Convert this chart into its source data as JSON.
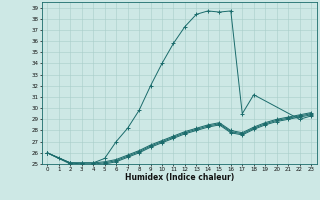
{
  "xlabel": "Humidex (Indice chaleur)",
  "ylabel": "",
  "bg_color": "#cde8e5",
  "grid_color": "#a8ceca",
  "line_color": "#1a6b6b",
  "xlim": [
    -0.5,
    23.5
  ],
  "ylim": [
    25,
    39.5
  ],
  "xticks": [
    0,
    1,
    2,
    3,
    4,
    5,
    6,
    7,
    8,
    9,
    10,
    11,
    12,
    13,
    14,
    15,
    16,
    17,
    18,
    19,
    20,
    21,
    22,
    23
  ],
  "yticks": [
    25,
    26,
    27,
    28,
    29,
    30,
    31,
    32,
    33,
    34,
    35,
    36,
    37,
    38,
    39
  ],
  "lines": [
    {
      "x": [
        0,
        1,
        2,
        3,
        4,
        5,
        6,
        7,
        8,
        9,
        10,
        11,
        12,
        13,
        14,
        15,
        16,
        17,
        18,
        22,
        23
      ],
      "y": [
        26.0,
        25.5,
        25.1,
        25.1,
        25.1,
        25.5,
        27.0,
        28.2,
        29.8,
        32.0,
        34.0,
        35.8,
        37.3,
        38.4,
        38.7,
        38.6,
        38.7,
        29.5,
        31.2,
        29.0,
        29.3
      ]
    },
    {
      "x": [
        0,
        2,
        3,
        4,
        5,
        6,
        7,
        8,
        9,
        10,
        11,
        12,
        13,
        14,
        15,
        16,
        17,
        18,
        19,
        20,
        21,
        22,
        23
      ],
      "y": [
        26.0,
        25.1,
        25.1,
        25.1,
        25.2,
        25.4,
        25.8,
        26.2,
        26.7,
        27.1,
        27.5,
        27.9,
        28.2,
        28.5,
        28.7,
        28.0,
        27.8,
        28.3,
        28.7,
        29.0,
        29.2,
        29.4,
        29.6
      ]
    },
    {
      "x": [
        0,
        2,
        3,
        4,
        5,
        6,
        7,
        8,
        9,
        10,
        11,
        12,
        13,
        14,
        15,
        16,
        17,
        18,
        19,
        20,
        21,
        22,
        23
      ],
      "y": [
        26.0,
        25.1,
        25.0,
        25.0,
        25.1,
        25.3,
        25.7,
        26.1,
        26.6,
        27.0,
        27.4,
        27.8,
        28.1,
        28.4,
        28.6,
        27.9,
        27.7,
        28.2,
        28.6,
        28.9,
        29.1,
        29.3,
        29.5
      ]
    },
    {
      "x": [
        0,
        2,
        3,
        4,
        5,
        6,
        7,
        8,
        9,
        10,
        11,
        12,
        13,
        14,
        15,
        16,
        17,
        18,
        19,
        20,
        21,
        22,
        23
      ],
      "y": [
        26.0,
        25.0,
        24.9,
        24.9,
        25.0,
        25.2,
        25.6,
        26.0,
        26.5,
        26.9,
        27.3,
        27.7,
        28.0,
        28.3,
        28.5,
        27.8,
        27.6,
        28.1,
        28.5,
        28.8,
        29.0,
        29.2,
        29.4
      ]
    }
  ]
}
